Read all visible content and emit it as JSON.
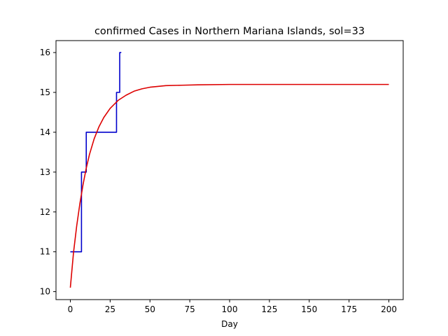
{
  "chart_data": {
    "type": "line",
    "title": "confirmed Cases in Northern Mariana Islands, sol=33",
    "xlabel": "Day",
    "ylabel": "",
    "xlim": [
      -9,
      209
    ],
    "ylim": [
      9.8,
      16.3
    ],
    "xticks": [
      0,
      25,
      50,
      75,
      100,
      125,
      150,
      175,
      200
    ],
    "yticks": [
      10,
      11,
      12,
      13,
      14,
      15,
      16
    ],
    "grid": false,
    "series": [
      {
        "kind": "step",
        "color": "#0000cc",
        "x": [
          0,
          1,
          2,
          3,
          4,
          5,
          6,
          7,
          8,
          9,
          10,
          11,
          12,
          13,
          14,
          15,
          16,
          17,
          18,
          19,
          20,
          21,
          22,
          23,
          24,
          25,
          26,
          27,
          28,
          29,
          30,
          31,
          32
        ],
        "values": [
          11,
          11,
          11,
          11,
          11,
          11,
          11,
          13,
          13,
          13,
          14,
          14,
          14,
          14,
          14,
          14,
          14,
          14,
          14,
          14,
          14,
          14,
          14,
          14,
          14,
          14,
          14,
          14,
          14,
          15,
          15,
          16,
          16
        ]
      },
      {
        "kind": "fit",
        "color": "#dd0000",
        "x": [
          0,
          2,
          4,
          6,
          8,
          10,
          12,
          15,
          18,
          21,
          25,
          30,
          35,
          40,
          45,
          50,
          60,
          70,
          80,
          100,
          125,
          150,
          175,
          200
        ],
        "values": [
          10.1,
          10.98,
          11.65,
          12.21,
          12.69,
          13.1,
          13.44,
          13.84,
          14.14,
          14.37,
          14.6,
          14.8,
          14.93,
          15.03,
          15.09,
          15.13,
          15.17,
          15.18,
          15.19,
          15.2,
          15.2,
          15.2,
          15.2,
          15.2
        ]
      }
    ]
  }
}
